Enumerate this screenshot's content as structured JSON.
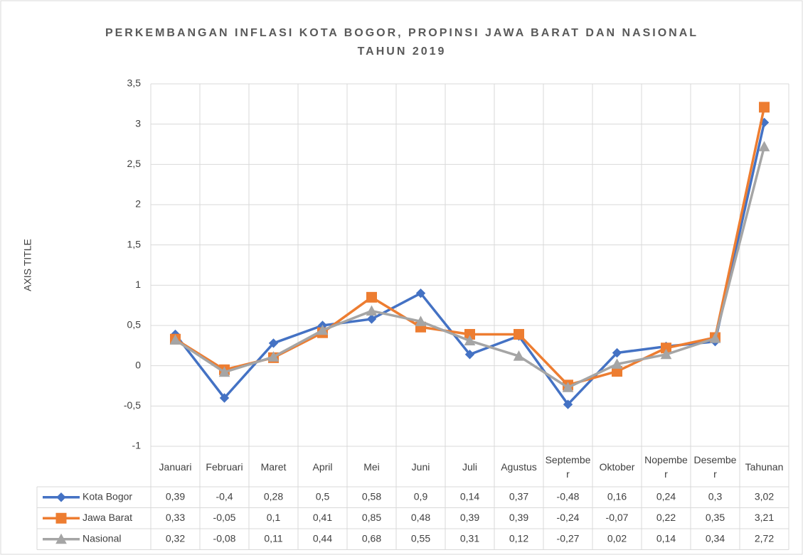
{
  "chart_data": {
    "type": "line",
    "title": "PERKEMBANGAN INFLASI KOTA BOGOR, PROPINSI JAWA BARAT DAN NASIONAL TAHUN 2019",
    "y_label": "AXIS TITLE",
    "categories": [
      "Januari",
      "Februari",
      "Maret",
      "April",
      "Mei",
      "Juni",
      "Juli",
      "Agustus",
      "September",
      "Oktober",
      "Nopember",
      "Desember",
      "Tahunan"
    ],
    "series": [
      {
        "name": "Kota Bogor",
        "color": "#4472c4",
        "marker": "diamond",
        "values": [
          0.39,
          -0.4,
          0.28,
          0.5,
          0.58,
          0.9,
          0.14,
          0.37,
          -0.48,
          0.16,
          0.24,
          0.3,
          3.02
        ],
        "value_labels": [
          "0,39",
          "-0,4",
          "0,28",
          "0,5",
          "0,58",
          "0,9",
          "0,14",
          "0,37",
          "-0,48",
          "0,16",
          "0,24",
          "0,3",
          "3,02"
        ]
      },
      {
        "name": "Jawa Barat",
        "color": "#ed7d31",
        "marker": "square",
        "values": [
          0.33,
          -0.05,
          0.1,
          0.41,
          0.85,
          0.48,
          0.39,
          0.39,
          -0.24,
          -0.07,
          0.22,
          0.35,
          3.21
        ],
        "value_labels": [
          "0,33",
          "-0,05",
          "0,1",
          "0,41",
          "0,85",
          "0,48",
          "0,39",
          "0,39",
          "-0,24",
          "-0,07",
          "0,22",
          "0,35",
          "3,21"
        ]
      },
      {
        "name": "Nasional",
        "color": "#a5a5a5",
        "marker": "triangle",
        "values": [
          0.32,
          -0.08,
          0.11,
          0.44,
          0.68,
          0.55,
          0.31,
          0.12,
          -0.27,
          0.02,
          0.14,
          0.34,
          2.72
        ],
        "value_labels": [
          "0,32",
          "-0,08",
          "0,11",
          "0,44",
          "0,68",
          "0,55",
          "0,31",
          "0,12",
          "-0,27",
          "0,02",
          "0,14",
          "0,34",
          "2,72"
        ]
      }
    ],
    "ylim": [
      -1,
      3.5
    ],
    "yticks": [
      -1,
      {
        "value": -0.5,
        "label": "-0,5"
      },
      0,
      {
        "value": 0.5,
        "label": "0,5"
      },
      1,
      {
        "value": 1.5,
        "label": "1,5"
      },
      2,
      {
        "value": 2.5,
        "label": "2,5"
      },
      3,
      {
        "value": 3.5,
        "label": "3,5"
      }
    ],
    "grid": true
  }
}
